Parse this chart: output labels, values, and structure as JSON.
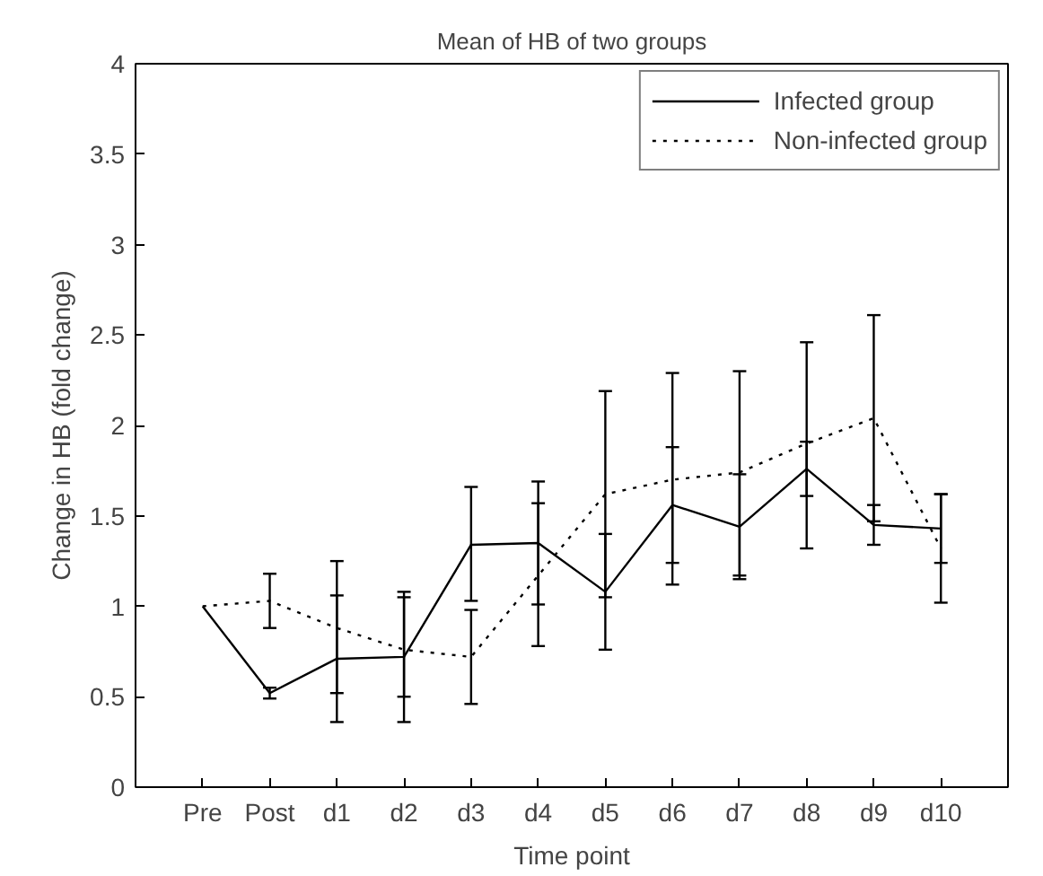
{
  "chart_data": {
    "type": "line",
    "title": "Mean of HB of two groups",
    "xlabel": "Time point",
    "ylabel": "Change in HB (fold change)",
    "categories": [
      "Pre",
      "Post",
      "d1",
      "d2",
      "d3",
      "d4",
      "d5",
      "d6",
      "d7",
      "d8",
      "d9",
      "d10"
    ],
    "series": [
      {
        "name": "Infected group",
        "color": "#000000",
        "line_style": "solid",
        "values": [
          1,
          0.52,
          0.71,
          0.72,
          1.34,
          1.35,
          1.08,
          1.56,
          1.44,
          1.76,
          1.45,
          1.43
        ],
        "errors": [
          null,
          [
            0.49,
            0.55
          ],
          [
            0.36,
            1.06
          ],
          [
            0.36,
            1.08
          ],
          [
            1.03,
            1.66
          ],
          [
            1.01,
            1.69
          ],
          [
            0.76,
            1.4
          ],
          [
            1.24,
            1.88
          ],
          [
            1.15,
            1.73
          ],
          [
            1.61,
            1.91
          ],
          [
            1.34,
            1.56
          ],
          [
            1.24,
            1.62
          ]
        ]
      },
      {
        "name": "Non-infected group",
        "color": "#000000",
        "line_style": "dotted",
        "values": [
          1,
          1.03,
          0.88,
          0.76,
          0.72,
          1.17,
          1.62,
          1.7,
          1.74,
          1.9,
          2.04,
          1.32
        ],
        "errors": [
          null,
          [
            0.88,
            1.18
          ],
          [
            0.52,
            1.25
          ],
          [
            0.5,
            1.05
          ],
          [
            0.46,
            0.98
          ],
          [
            0.78,
            1.57
          ],
          [
            1.05,
            2.19
          ],
          [
            1.12,
            2.29
          ],
          [
            1.17,
            2.3
          ],
          [
            1.32,
            2.46
          ],
          [
            1.47,
            2.61
          ],
          [
            1.02,
            1.62
          ]
        ]
      }
    ],
    "ylim": [
      0,
      4
    ],
    "yticks": [
      0,
      0.5,
      1,
      1.5,
      2,
      2.5,
      3,
      3.5,
      4
    ],
    "grid": false,
    "legend": "top right",
    "marker": "none"
  }
}
